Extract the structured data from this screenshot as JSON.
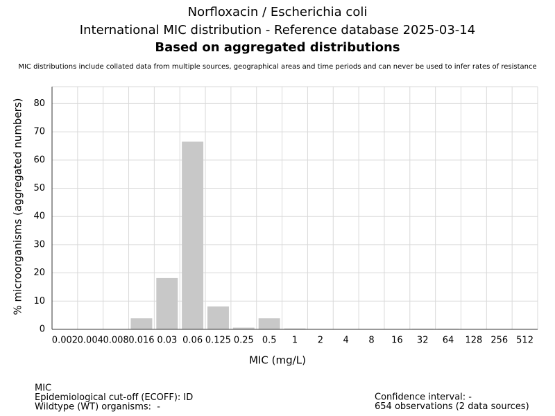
{
  "chart_data": {
    "type": "bar",
    "title": "Norfloxacin / Escherichia coli",
    "subtitle": "International MIC distribution - Reference database 2025-03-14",
    "heading": "Based on aggregated distributions",
    "note": "MIC distributions include collated data from multiple sources, geographical areas and time periods and can never be used to infer rates of resistance",
    "x_label": "MIC (mg/L)",
    "y_label": "% microorganisms (aggregated numbers)",
    "categories": [
      "0.002",
      "0.004",
      "0.008",
      "0.016",
      "0.03",
      "0.06",
      "0.125",
      "0.25",
      "0.5",
      "1",
      "2",
      "4",
      "8",
      "16",
      "32",
      "64",
      "128",
      "256",
      "512"
    ],
    "values": [
      0,
      0,
      0,
      3.9,
      18.2,
      66.5,
      8.1,
      0.6,
      3.9,
      0.3,
      0,
      0,
      0,
      0,
      0.2,
      0.2,
      0,
      0,
      0
    ],
    "color": "#c8c8c8",
    "ylim": [
      0,
      86
    ],
    "yticks": [
      0,
      10,
      20,
      30,
      40,
      50,
      60,
      70,
      80
    ],
    "grid": true
  },
  "footer": {
    "left": [
      "MIC",
      "Epidemiological cut-off (ECOFF): ID",
      "Wildtype (WT) organisms:  -"
    ],
    "right": [
      "Confidence interval: -",
      "654 observations (2 data sources)"
    ]
  }
}
